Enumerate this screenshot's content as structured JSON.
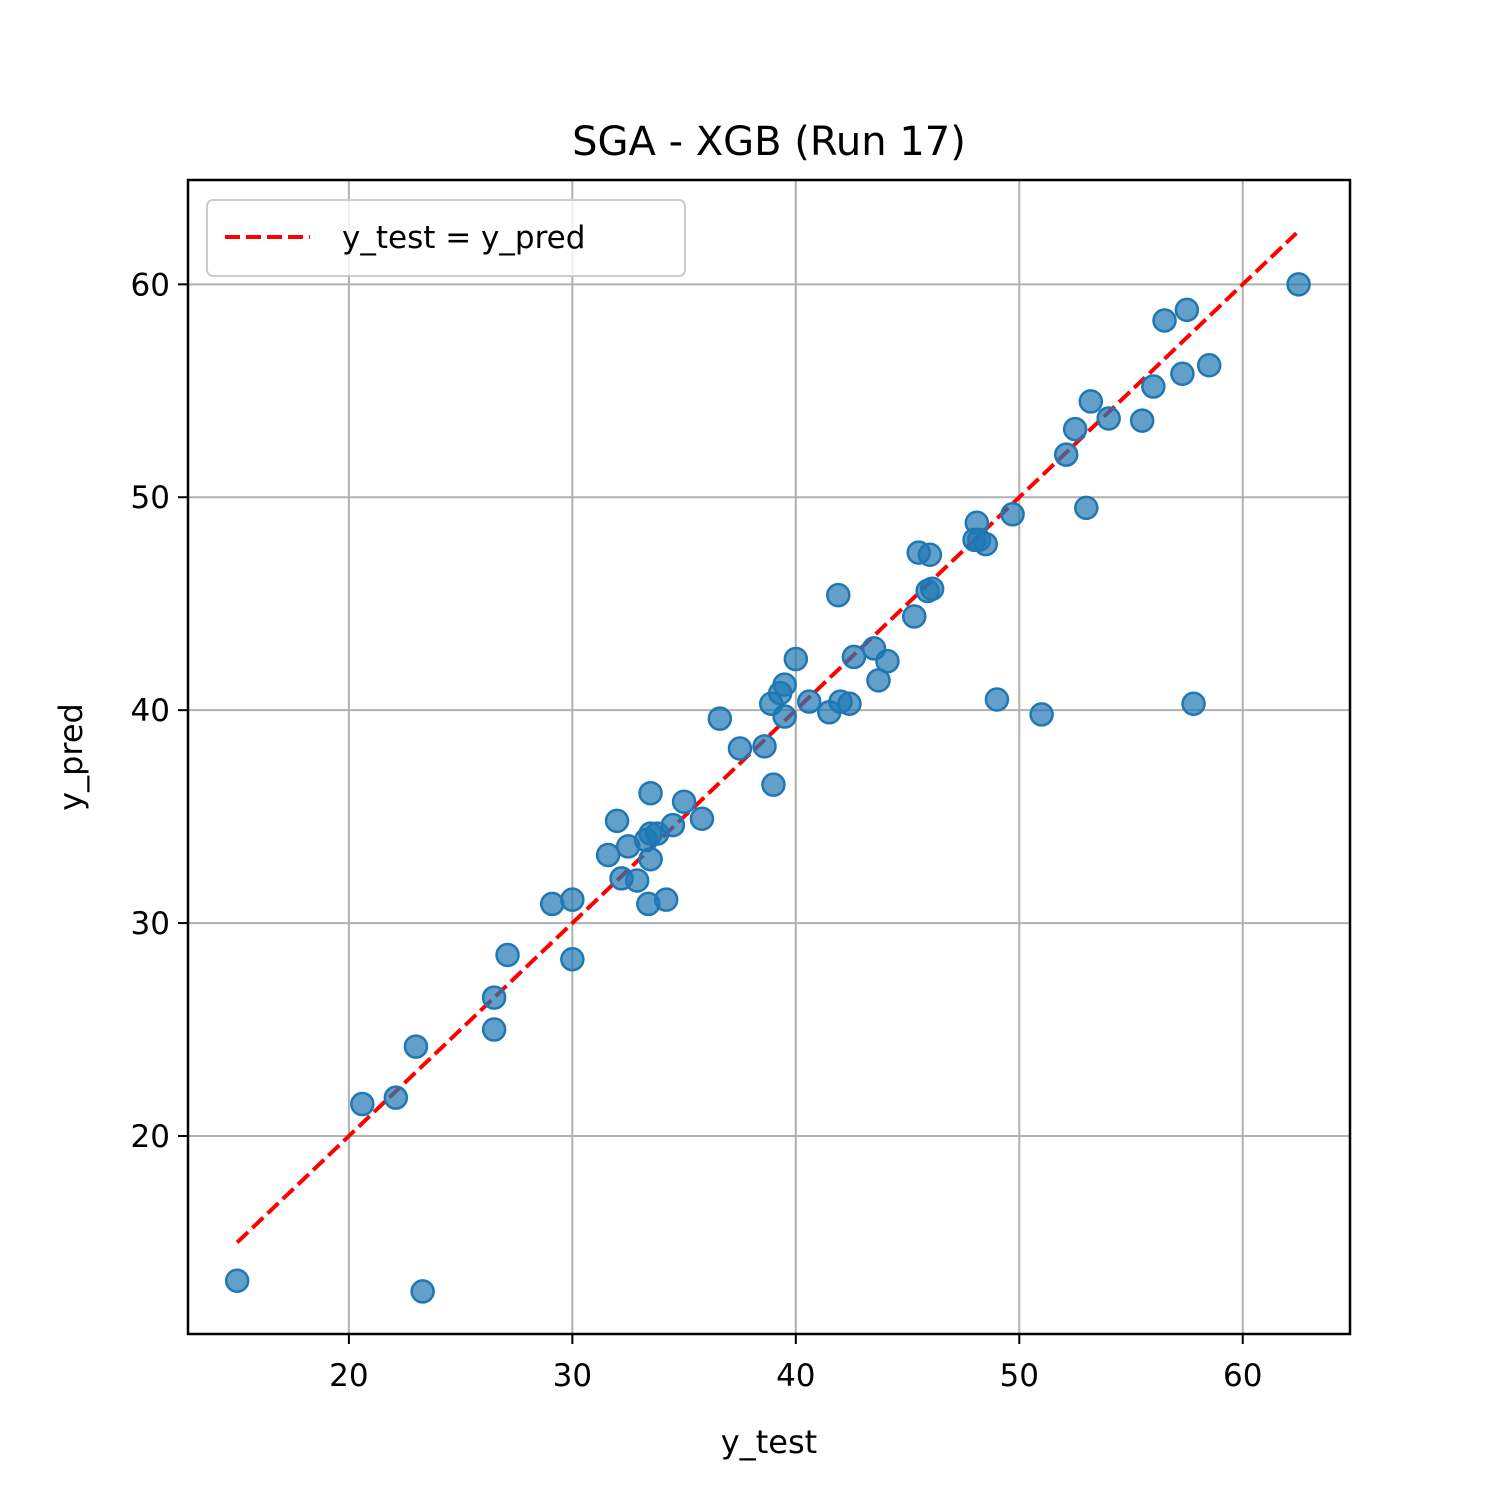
{
  "chart_data": {
    "type": "scatter",
    "title": "SGA - XGB (Run 17)",
    "xlabel": "y_test",
    "ylabel": "y_pred",
    "xlim": [
      12.8,
      64.8
    ],
    "ylim": [
      10.7,
      64.9
    ],
    "xticks": [
      20,
      30,
      40,
      50,
      60
    ],
    "yticks": [
      20,
      30,
      40,
      50,
      60
    ],
    "grid": true,
    "legend": {
      "location": "upper-left",
      "entries": [
        "y_test = y_pred"
      ]
    },
    "reference_line": {
      "label": "y_test = y_pred",
      "style": "dashed",
      "color": "#ff0000",
      "x": [
        15.0,
        62.4
      ],
      "y": [
        15.0,
        62.4
      ]
    },
    "series": [
      {
        "color": "#1f77b4",
        "points": [
          [
            15.0,
            13.2
          ],
          [
            23.3,
            12.7
          ],
          [
            20.6,
            21.5
          ],
          [
            22.1,
            21.8
          ],
          [
            23.0,
            24.2
          ],
          [
            26.5,
            25.0
          ],
          [
            26.5,
            26.5
          ],
          [
            27.1,
            28.5
          ],
          [
            30.0,
            28.3
          ],
          [
            29.1,
            30.9
          ],
          [
            30.0,
            31.1
          ],
          [
            32.2,
            32.1
          ],
          [
            32.9,
            32.0
          ],
          [
            33.4,
            30.9
          ],
          [
            34.2,
            31.1
          ],
          [
            31.6,
            33.2
          ],
          [
            32.5,
            33.6
          ],
          [
            33.5,
            33.0
          ],
          [
            33.3,
            33.9
          ],
          [
            33.5,
            34.2
          ],
          [
            33.8,
            34.2
          ],
          [
            34.5,
            34.6
          ],
          [
            32.0,
            34.8
          ],
          [
            35.0,
            35.7
          ],
          [
            35.8,
            34.9
          ],
          [
            33.5,
            36.1
          ],
          [
            36.6,
            39.6
          ],
          [
            37.5,
            38.2
          ],
          [
            38.6,
            38.3
          ],
          [
            39.0,
            36.5
          ],
          [
            38.9,
            40.3
          ],
          [
            39.3,
            40.8
          ],
          [
            39.5,
            41.2
          ],
          [
            39.5,
            39.7
          ],
          [
            40.0,
            42.4
          ],
          [
            40.6,
            40.4
          ],
          [
            41.5,
            39.9
          ],
          [
            42.0,
            40.4
          ],
          [
            42.4,
            40.3
          ],
          [
            41.9,
            45.4
          ],
          [
            42.6,
            42.5
          ],
          [
            43.5,
            42.9
          ],
          [
            43.7,
            41.4
          ],
          [
            44.1,
            42.3
          ],
          [
            45.3,
            44.4
          ],
          [
            45.9,
            45.6
          ],
          [
            46.1,
            45.7
          ],
          [
            45.5,
            47.4
          ],
          [
            46.0,
            47.3
          ],
          [
            48.1,
            48.8
          ],
          [
            48.0,
            48.0
          ],
          [
            48.2,
            48.0
          ],
          [
            48.5,
            47.8
          ],
          [
            49.7,
            49.2
          ],
          [
            49.0,
            40.5
          ],
          [
            51.0,
            39.8
          ],
          [
            52.1,
            52.0
          ],
          [
            52.5,
            53.2
          ],
          [
            53.0,
            49.5
          ],
          [
            53.2,
            54.5
          ],
          [
            54.0,
            53.7
          ],
          [
            55.5,
            53.6
          ],
          [
            56.0,
            55.2
          ],
          [
            56.5,
            58.3
          ],
          [
            57.3,
            55.8
          ],
          [
            57.5,
            58.8
          ],
          [
            57.8,
            40.3
          ],
          [
            58.5,
            56.2
          ],
          [
            62.5,
            60.0
          ]
        ]
      }
    ]
  }
}
